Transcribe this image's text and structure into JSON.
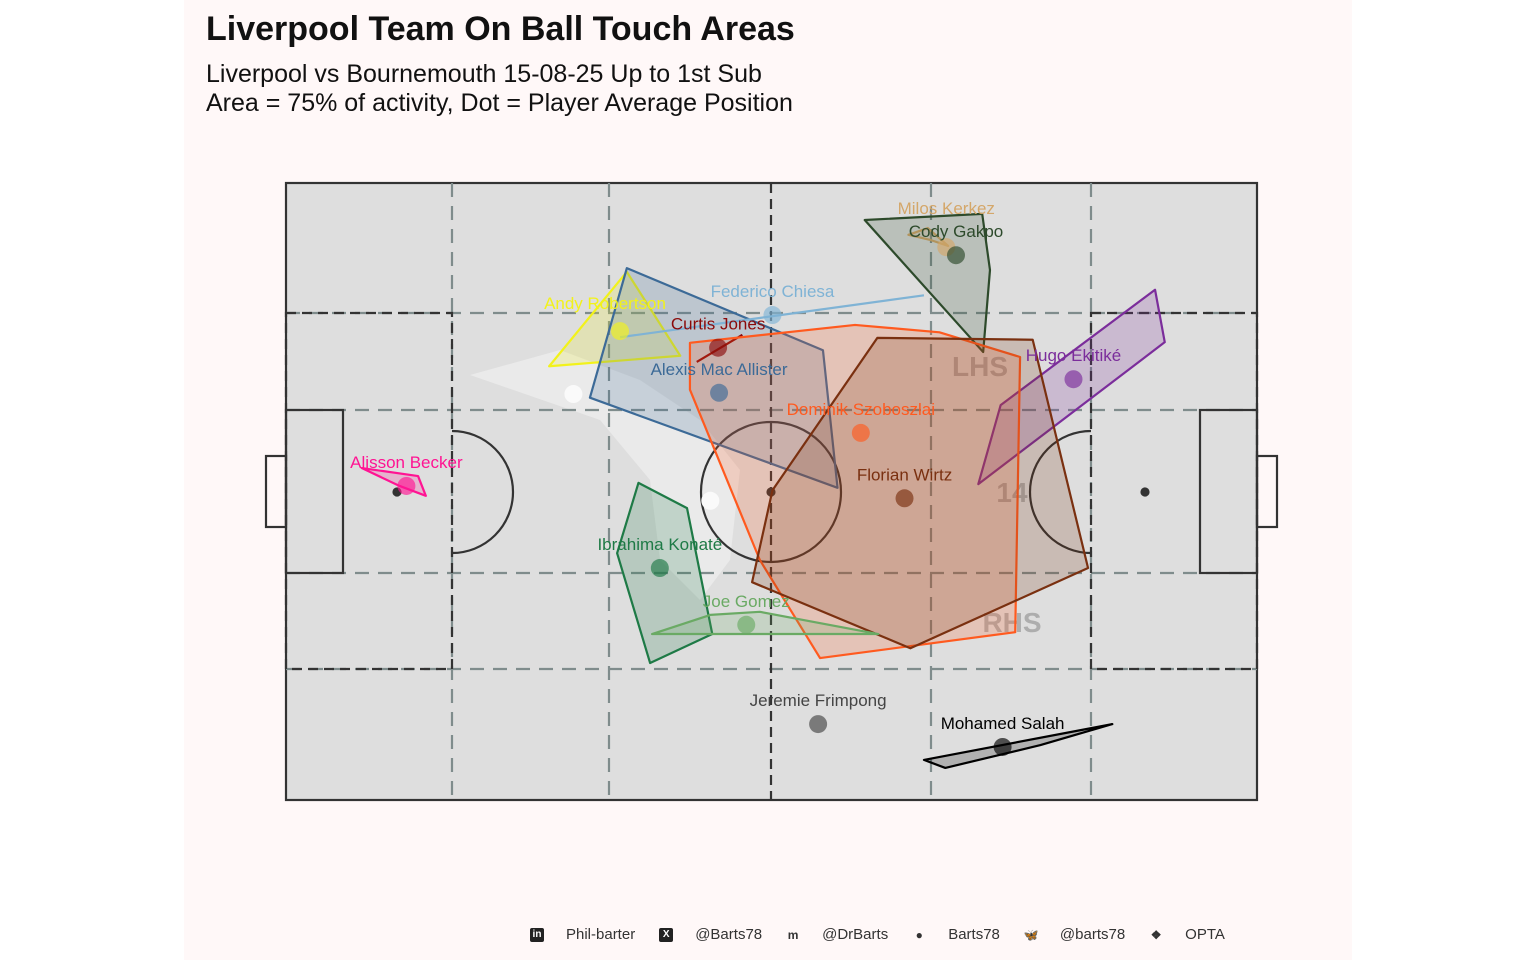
{
  "chart_data": {
    "type": "scatter",
    "title": "Liverpool Team On Ball Touch Areas",
    "subtitle_lines": [
      "Liverpool vs Bournemouth 15-08-25 Up to 1st Sub",
      "Area = 75% of activity, Dot = Player Average Position"
    ],
    "xlim": [
      0,
      100
    ],
    "ylim": [
      0,
      100
    ],
    "grid": false,
    "zone_labels": [
      "LHS",
      "14",
      "RHS"
    ],
    "players": [
      {
        "name": "Alisson Becker",
        "color": "#ff1493",
        "avg": [
          12.4,
          50.9
        ],
        "area": [
          [
            7.8,
            53.8
          ],
          [
            13.6,
            52.5
          ],
          [
            14.4,
            49.3
          ],
          [
            11.7,
            50.9
          ]
        ]
      },
      {
        "name": "Andy Robertson",
        "color": "#f2f21a",
        "avg": [
          34.4,
          76.0
        ],
        "area": [
          [
            35.1,
            85.6
          ],
          [
            40.6,
            72.0
          ],
          [
            27.1,
            70.3
          ]
        ]
      },
      {
        "name": "Alexis Mac Allister",
        "color": "#3c6a97",
        "avg": [
          44.6,
          66.0
        ],
        "area": [
          [
            35.1,
            86.2
          ],
          [
            55.3,
            72.9
          ],
          [
            56.8,
            50.6
          ],
          [
            31.3,
            65.2
          ]
        ]
      },
      {
        "name": "Curtis Jones",
        "color": "#8b0a0a",
        "avg": [
          44.5,
          73.3
        ],
        "area": [
          [
            42.3,
            71.0
          ],
          [
            47.0,
            75.4
          ]
        ]
      },
      {
        "name": "Federico Chiesa",
        "color": "#7fb3d5",
        "avg": [
          50.1,
          78.6
        ],
        "area": [
          [
            34.4,
            75.0
          ],
          [
            65.7,
            81.8
          ]
        ]
      },
      {
        "name": "Milos Kerkez",
        "color": "#d4a76a",
        "avg": [
          68.0,
          89.6
        ],
        "area": [
          [
            64.1,
            91.6
          ],
          [
            66.1,
            92.7
          ],
          [
            68.2,
            89.8
          ],
          [
            66.3,
            90.8
          ]
        ]
      },
      {
        "name": "Cody Gakpo",
        "color": "#2d4a2b",
        "avg": [
          69.0,
          88.3
        ],
        "area": [
          [
            59.6,
            94.0
          ],
          [
            71.7,
            95.0
          ],
          [
            72.5,
            85.9
          ],
          [
            71.8,
            72.6
          ]
        ]
      },
      {
        "name": "Hugo Ekitiké",
        "color": "#7b2d9b",
        "avg": [
          81.1,
          68.2
        ],
        "area": [
          [
            73.6,
            64.0
          ],
          [
            89.5,
            82.7
          ],
          [
            90.5,
            74.2
          ],
          [
            71.3,
            51.2
          ]
        ]
      },
      {
        "name": "Dominik Szoboszlai",
        "color": "#ff5a1f",
        "avg": [
          59.2,
          59.5
        ],
        "area": [
          [
            41.6,
            74.1
          ],
          [
            58.6,
            77.0
          ],
          [
            67.3,
            75.8
          ],
          [
            75.6,
            71.8
          ],
          [
            75.1,
            27.2
          ],
          [
            55.0,
            23.0
          ],
          [
            48.8,
            38.9
          ],
          [
            41.6,
            66.5
          ]
        ]
      },
      {
        "name": "Florian Wirtz",
        "color": "#7a3010",
        "avg": [
          63.7,
          48.9
        ],
        "area": [
          [
            60.9,
            74.9
          ],
          [
            76.9,
            74.6
          ],
          [
            82.6,
            37.6
          ],
          [
            64.3,
            24.6
          ],
          [
            48.0,
            35.3
          ],
          [
            50.1,
            50.2
          ]
        ]
      },
      {
        "name": "Ibrahima Konaté",
        "color": "#1e7a46",
        "avg": [
          38.5,
          37.6
        ],
        "area": [
          [
            36.3,
            51.4
          ],
          [
            41.3,
            47.3
          ],
          [
            43.9,
            26.9
          ],
          [
            37.5,
            22.2
          ],
          [
            34.1,
            40.0
          ]
        ]
      },
      {
        "name": "Joe Gomez",
        "color": "#6aaa64",
        "avg": [
          47.4,
          28.4
        ],
        "area": [
          [
            37.7,
            26.9
          ],
          [
            43.7,
            30.0
          ],
          [
            48.8,
            30.5
          ],
          [
            61.0,
            26.9
          ]
        ]
      },
      {
        "name": "Jeremie Frimpong",
        "color": "#444444",
        "avg": [
          54.8,
          12.3
        ],
        "area": []
      },
      {
        "name": "Mohamed Salah",
        "color": "#000000",
        "avg": [
          73.8,
          8.6
        ],
        "area": [
          [
            65.7,
            6.5
          ],
          [
            85.1,
            12.3
          ],
          [
            77.7,
            8.9
          ],
          [
            67.9,
            5.2
          ]
        ]
      }
    ],
    "unlabeled_points": [
      [
        29.6,
        65.8
      ],
      [
        43.7,
        48.5
      ]
    ]
  },
  "footer": {
    "items": [
      {
        "icon": "linkedin-icon",
        "glyph": "in",
        "text": "Phil-barter"
      },
      {
        "icon": "x-icon",
        "glyph": "X",
        "text": "@Barts78"
      },
      {
        "icon": "mastodon-icon",
        "glyph": "m",
        "text": "@DrBarts"
      },
      {
        "icon": "github-icon",
        "glyph": "●",
        "text": "Barts78"
      },
      {
        "icon": "bluesky-icon",
        "glyph": "🦋",
        "text": "@barts78"
      },
      {
        "icon": "dropbox-icon",
        "glyph": "❖",
        "text": "OPTA"
      }
    ]
  }
}
